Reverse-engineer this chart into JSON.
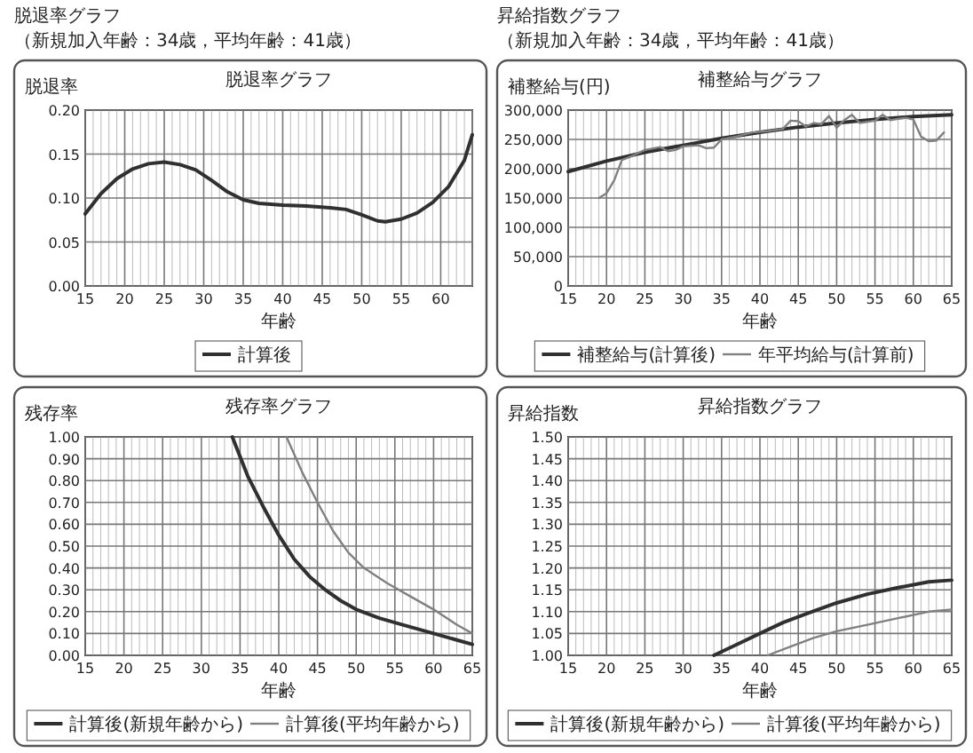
{
  "chart_data": [
    {
      "type": "line",
      "title": "脱退率グラフ",
      "annotations": [
        "脱退率グラフ",
        "（新規加入年齢：34歳，平均年齢：41歳）"
      ],
      "ylabel": "脱退率",
      "xlabel": "年齢",
      "xlim": [
        15,
        64
      ],
      "xticks": [
        15,
        20,
        25,
        30,
        35,
        40,
        45,
        50,
        55,
        60
      ],
      "ylim": [
        0,
        0.2
      ],
      "yticks": [
        {
          "value": 0,
          "label": "0.00"
        },
        {
          "value": 0.05,
          "label": "0.05"
        },
        {
          "value": 0.1,
          "label": "0.10"
        },
        {
          "value": 0.15,
          "label": "0.15"
        },
        {
          "value": 0.2,
          "label": "0.20"
        }
      ],
      "grid": true,
      "legend": "bottom",
      "marker": "none",
      "line_style": "solid",
      "series": [
        {
          "name": "計算後",
          "color": "#303030",
          "x": [
            15,
            17,
            19,
            21,
            23,
            25,
            27,
            29,
            31,
            33,
            35,
            37,
            40,
            43,
            46,
            48,
            50,
            52,
            53,
            55,
            57,
            59,
            61,
            63,
            64
          ],
          "values": [
            0.082,
            0.105,
            0.122,
            0.133,
            0.139,
            0.141,
            0.138,
            0.132,
            0.12,
            0.107,
            0.098,
            0.094,
            0.092,
            0.091,
            0.089,
            0.087,
            0.081,
            0.074,
            0.073,
            0.076,
            0.083,
            0.095,
            0.113,
            0.143,
            0.172
          ]
        }
      ]
    },
    {
      "type": "line",
      "title": "補整給与グラフ",
      "annotations": [
        "昇給指数グラフ",
        "（新規加入年齢：34歳，平均年齢：41歳）"
      ],
      "ylabel": "補整給与(円)",
      "xlabel": "年齢",
      "xlim": [
        15,
        65
      ],
      "xticks": [
        15,
        20,
        25,
        30,
        35,
        40,
        45,
        50,
        55,
        60,
        65
      ],
      "ylim": [
        0,
        300000
      ],
      "yticks": [
        0,
        {
          "value": 50000,
          "label": "50,000"
        },
        {
          "value": 100000,
          "label": "100,000"
        },
        {
          "value": 150000,
          "label": "150,000"
        },
        {
          "value": 200000,
          "label": "200,000"
        },
        {
          "value": 250000,
          "label": "250,000"
        },
        {
          "value": 300000,
          "label": "300,000"
        }
      ],
      "grid": true,
      "legend": "bottom",
      "marker": "none",
      "line_style": "solid",
      "series": [
        {
          "name": "補整給与(計算後)",
          "color": "#303030",
          "x": [
            15,
            20,
            25,
            30,
            35,
            40,
            45,
            50,
            55,
            60,
            65
          ],
          "values": [
            195000,
            213000,
            228000,
            240000,
            252000,
            262000,
            271000,
            278000,
            284000,
            289000,
            292000
          ]
        },
        {
          "name": "年平均給与(計算前)",
          "color": "#808080",
          "x": [
            19,
            20,
            21,
            22,
            23,
            25,
            27,
            28,
            29,
            30,
            32,
            33,
            34,
            35,
            37,
            39,
            41,
            43,
            44,
            45,
            46,
            47,
            48,
            49,
            50,
            51,
            52,
            53,
            55,
            56,
            57,
            58,
            59,
            60,
            61,
            62,
            63,
            64
          ],
          "values": [
            150000,
            158000,
            180000,
            215000,
            220000,
            232000,
            237000,
            230000,
            232000,
            238000,
            240000,
            235000,
            236000,
            250000,
            255000,
            262000,
            264000,
            268000,
            282000,
            281000,
            272000,
            278000,
            276000,
            290000,
            270000,
            283000,
            292000,
            278000,
            282000,
            292000,
            283000,
            285000,
            287000,
            284000,
            255000,
            247000,
            248000,
            262000
          ]
        }
      ]
    },
    {
      "type": "line",
      "title": "残存率グラフ",
      "ylabel": "残存率",
      "xlabel": "年齢",
      "xlim": [
        15,
        65
      ],
      "xticks": [
        15,
        20,
        25,
        30,
        35,
        40,
        45,
        50,
        55,
        60,
        65
      ],
      "ylim": [
        0,
        1
      ],
      "yticks": [
        {
          "value": 0,
          "label": "0.00"
        },
        {
          "value": 0.1,
          "label": "0.10"
        },
        {
          "value": 0.2,
          "label": "0.20"
        },
        {
          "value": 0.3,
          "label": "0.30"
        },
        {
          "value": 0.4,
          "label": "0.40"
        },
        {
          "value": 0.5,
          "label": "0.50"
        },
        {
          "value": 0.6,
          "label": "0.60"
        },
        {
          "value": 0.7,
          "label": "0.70"
        },
        {
          "value": 0.8,
          "label": "0.80"
        },
        {
          "value": 0.9,
          "label": "0.90"
        },
        {
          "value": 1,
          "label": "1.00"
        }
      ],
      "grid": true,
      "legend": "bottom",
      "marker": "none",
      "line_style": "solid",
      "series": [
        {
          "name": "計算後(新規年齢から)",
          "color": "#303030",
          "x": [
            34,
            36,
            38,
            40,
            42,
            44,
            46,
            48,
            50,
            53,
            56,
            60,
            63,
            65
          ],
          "values": [
            1.0,
            0.82,
            0.68,
            0.55,
            0.44,
            0.36,
            0.3,
            0.25,
            0.21,
            0.17,
            0.14,
            0.1,
            0.07,
            0.05
          ]
        },
        {
          "name": "計算後(平均年齢から)",
          "color": "#808080",
          "x": [
            41,
            43,
            45,
            47,
            49,
            51,
            54,
            57,
            60,
            63,
            65
          ],
          "values": [
            1.0,
            0.84,
            0.7,
            0.57,
            0.47,
            0.4,
            0.33,
            0.27,
            0.21,
            0.14,
            0.1
          ]
        }
      ]
    },
    {
      "type": "line",
      "title": "昇給指数グラフ",
      "ylabel": "昇給指数",
      "xlabel": "年齢",
      "xlim": [
        15,
        65
      ],
      "xticks": [
        15,
        20,
        25,
        30,
        35,
        40,
        45,
        50,
        55,
        60,
        65
      ],
      "ylim": [
        1,
        1.5
      ],
      "yticks": [
        {
          "value": 1,
          "label": "1.00"
        },
        {
          "value": 1.05,
          "label": "1.05"
        },
        {
          "value": 1.1,
          "label": "1.10"
        },
        {
          "value": 1.15,
          "label": "1.15"
        },
        {
          "value": 1.2,
          "label": "1.20"
        },
        {
          "value": 1.25,
          "label": "1.25"
        },
        {
          "value": 1.3,
          "label": "1.30"
        },
        {
          "value": 1.35,
          "label": "1.35"
        },
        {
          "value": 1.4,
          "label": "1.40"
        },
        {
          "value": 1.45,
          "label": "1.45"
        },
        {
          "value": 1.5,
          "label": "1.50"
        }
      ],
      "grid": true,
      "legend": "bottom",
      "marker": "none",
      "line_style": "solid",
      "series": [
        {
          "name": "計算後(新規年齢から)",
          "color": "#303030",
          "x": [
            34,
            37,
            40,
            43,
            46,
            50,
            54,
            58,
            62,
            65
          ],
          "values": [
            1.0,
            1.025,
            1.05,
            1.075,
            1.095,
            1.12,
            1.14,
            1.155,
            1.168,
            1.172
          ]
        },
        {
          "name": "計算後(平均年齢から)",
          "color": "#808080",
          "x": [
            41,
            44,
            47,
            50,
            54,
            58,
            62,
            65
          ],
          "values": [
            1.0,
            1.02,
            1.04,
            1.055,
            1.07,
            1.085,
            1.1,
            1.105
          ]
        }
      ]
    }
  ]
}
